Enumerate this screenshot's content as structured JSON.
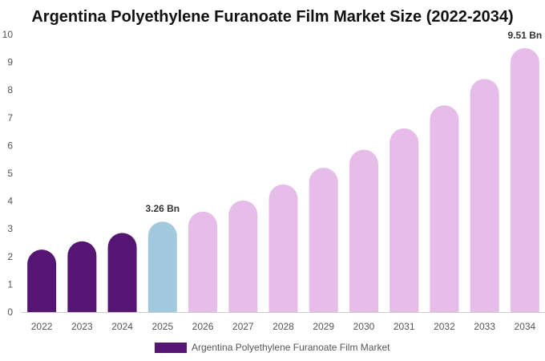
{
  "chart_data": {
    "type": "bar",
    "title": "Argentina Polyethylene Furanoate Film Market Size (2022-2034)",
    "categories": [
      "2022",
      "2023",
      "2024",
      "2025",
      "2026",
      "2027",
      "2028",
      "2029",
      "2030",
      "2031",
      "2032",
      "2033",
      "2034"
    ],
    "series": [
      {
        "name": "Argentina Polyethylene Furanoate Film Market",
        "values": [
          2.25,
          2.55,
          2.85,
          3.26,
          3.62,
          4.02,
          4.6,
          5.2,
          5.85,
          6.62,
          7.45,
          8.4,
          9.51
        ]
      }
    ],
    "ylim": [
      0,
      10
    ],
    "yticks": [
      "0",
      "1",
      "2",
      "3",
      "4",
      "5",
      "6",
      "7",
      "8",
      "9",
      "10"
    ],
    "xlabel": "",
    "ylabel": "",
    "grid": false,
    "legend_position": "bottom",
    "data_labels": [
      {
        "category": "2025",
        "text": "3.26 Bn"
      },
      {
        "category": "2034",
        "text": "9.51 Bn"
      }
    ],
    "colors": {
      "historical": "#541573",
      "base_year": "#a3c9de",
      "forecast": "#e6bde9",
      "legend_swatch": "#541573"
    },
    "historical_categories": [
      "2022",
      "2023",
      "2024"
    ],
    "base_year_category": "2025"
  }
}
